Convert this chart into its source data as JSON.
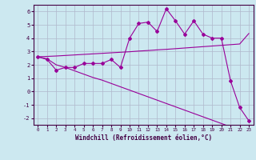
{
  "xlabel": "Windchill (Refroidissement éolien,°C)",
  "x_data": [
    0,
    1,
    2,
    3,
    4,
    5,
    6,
    7,
    8,
    9,
    10,
    11,
    12,
    13,
    14,
    15,
    16,
    17,
    18,
    19,
    20,
    21,
    22,
    23
  ],
  "y_main": [
    2.6,
    2.4,
    1.6,
    1.8,
    1.8,
    2.1,
    2.1,
    2.1,
    2.4,
    1.8,
    4.0,
    5.1,
    5.2,
    4.5,
    6.2,
    5.3,
    4.3,
    5.3,
    4.3,
    4.0,
    4.0,
    0.8,
    -1.2,
    -2.2
  ],
  "y_trend_up": [
    2.6,
    2.63,
    2.66,
    2.7,
    2.74,
    2.78,
    2.82,
    2.86,
    2.9,
    2.94,
    2.98,
    3.03,
    3.07,
    3.12,
    3.16,
    3.21,
    3.26,
    3.31,
    3.36,
    3.41,
    3.46,
    3.51,
    3.56,
    4.35
  ],
  "y_trend_down": [
    2.6,
    2.45,
    2.0,
    1.8,
    1.55,
    1.3,
    1.05,
    0.85,
    0.6,
    0.35,
    0.1,
    -0.15,
    -0.4,
    -0.65,
    -0.9,
    -1.15,
    -1.4,
    -1.65,
    -1.9,
    -2.15,
    -2.4,
    -2.65,
    -2.9,
    -3.15
  ],
  "line_color": "#990099",
  "bg_color": "#cce8f0",
  "grid_color": "#b0b8cc",
  "ylim": [
    -2.5,
    6.5
  ],
  "xlim": [
    -0.5,
    23.5
  ],
  "yticks": [
    -2,
    -1,
    0,
    1,
    2,
    3,
    4,
    5,
    6
  ],
  "xticks": [
    0,
    1,
    2,
    3,
    4,
    5,
    6,
    7,
    8,
    9,
    10,
    11,
    12,
    13,
    14,
    15,
    16,
    17,
    18,
    19,
    20,
    21,
    22,
    23
  ]
}
